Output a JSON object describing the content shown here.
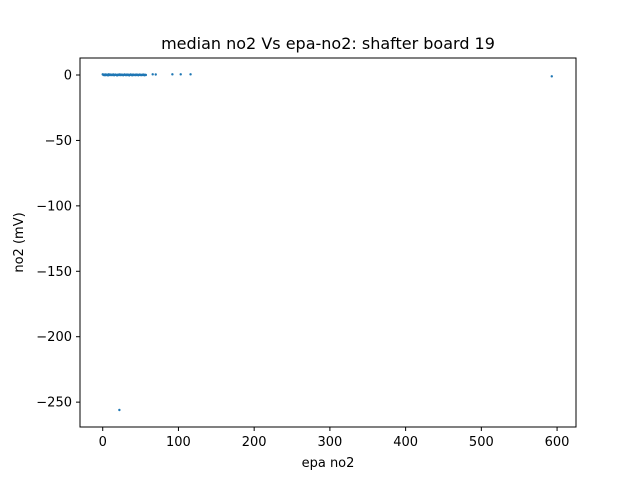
{
  "chart_data": {
    "type": "scatter",
    "title": "median no2 Vs epa-no2: shafter board 19",
    "xlabel": "epa no2",
    "ylabel": "no2 (mV)",
    "xlim": [
      -30,
      625
    ],
    "ylim": [
      -269,
      13
    ],
    "xticks": [
      0,
      100,
      200,
      300,
      400,
      500,
      600
    ],
    "yticks": [
      0,
      -50,
      -100,
      -150,
      -200,
      -250
    ],
    "xtick_labels": [
      "0",
      "100",
      "200",
      "300",
      "400",
      "500",
      "600"
    ],
    "ytick_labels": [
      "0",
      "−50",
      "−100",
      "−150",
      "−200",
      "−250"
    ],
    "grid": false,
    "legend": "none",
    "color": "#1f77b4",
    "series": [
      {
        "points": [
          [
            0,
            0.5
          ],
          [
            1,
            0
          ],
          [
            2,
            0.3
          ],
          [
            3,
            -0.2
          ],
          [
            4,
            0.4
          ],
          [
            5,
            0
          ],
          [
            6,
            0.2
          ],
          [
            7,
            -0.3
          ],
          [
            8,
            0.5
          ],
          [
            9,
            0
          ],
          [
            10,
            0.3
          ],
          [
            11,
            -0.1
          ],
          [
            12,
            0.2
          ],
          [
            13,
            0
          ],
          [
            14,
            0.4
          ],
          [
            15,
            -0.2
          ],
          [
            16,
            0.1
          ],
          [
            17,
            0.3
          ],
          [
            18,
            0
          ],
          [
            19,
            -0.3
          ],
          [
            20,
            0.2
          ],
          [
            21,
            0
          ],
          [
            22,
            0.4
          ],
          [
            23,
            -0.1
          ],
          [
            24,
            0.3
          ],
          [
            25,
            0
          ],
          [
            26,
            0.2
          ],
          [
            27,
            -0.2
          ],
          [
            28,
            0.1
          ],
          [
            29,
            0.4
          ],
          [
            30,
            0
          ],
          [
            31,
            -0.1
          ],
          [
            32,
            0.3
          ],
          [
            33,
            0
          ],
          [
            34,
            0.2
          ],
          [
            35,
            -0.3
          ],
          [
            36,
            0.1
          ],
          [
            37,
            0.4
          ],
          [
            38,
            0
          ],
          [
            39,
            -0.2
          ],
          [
            40,
            0.3
          ],
          [
            41,
            0
          ],
          [
            42,
            0.1
          ],
          [
            43,
            -0.1
          ],
          [
            44,
            0.3
          ],
          [
            45,
            0
          ],
          [
            46,
            0.2
          ],
          [
            47,
            -0.2
          ],
          [
            48,
            0.1
          ],
          [
            49,
            0.3
          ],
          [
            50,
            0
          ],
          [
            51,
            -0.1
          ],
          [
            52,
            0.2
          ],
          [
            53,
            0
          ],
          [
            54,
            0.3
          ],
          [
            55,
            -0.2
          ],
          [
            56,
            0.1
          ],
          [
            57,
            0
          ],
          [
            66,
            0.5
          ],
          [
            70,
            0.4
          ],
          [
            92,
            0.5
          ],
          [
            103,
            0.5
          ],
          [
            116,
            0.5
          ],
          [
            593,
            -1
          ],
          [
            22,
            -256
          ]
        ]
      }
    ]
  }
}
